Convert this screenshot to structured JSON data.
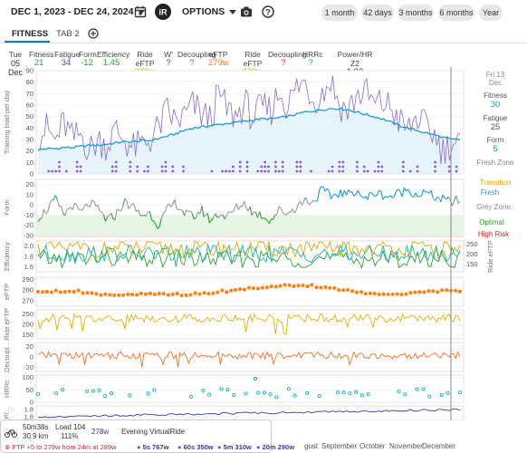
{
  "header": {
    "date_range": "DEC 1, 2023 - DEC 24, 2024",
    "options_label": "OPTIONS",
    "range_buttons": [
      "1 month",
      "42 days",
      "3 months",
      "6 months",
      "Year"
    ]
  },
  "tabs": [
    {
      "label": "FITNESS"
    },
    {
      "label": "TAB 2"
    }
  ],
  "summary": {
    "day": "Tue",
    "date": "05 Dec",
    "metrics": [
      {
        "label": "Fitness",
        "value": "21",
        "color": "#1a9bd7"
      },
      {
        "label": "Fatigue",
        "value": "34",
        "color": "#6b3fa0"
      },
      {
        "label": "Form",
        "value": "-12",
        "color": "#2aa12a"
      },
      {
        "label": "Efficiency",
        "value": "1.45",
        "color": "#2aa12a"
      },
      {
        "label": "Ride eFTP",
        "value": "279w",
        "color": "#e0a800"
      },
      {
        "label": "W'",
        "value": "?",
        "color": "#d62728"
      },
      {
        "label": "Decoupling",
        "value": "?",
        "color": "#1a9bd7"
      },
      {
        "label": "eFTP",
        "value": "279w",
        "color": "#ff7f0e"
      },
      {
        "label": "Ride eFTP",
        "value": "279w",
        "color": "#e0a800"
      },
      {
        "label": "Decoupling",
        "value": "?",
        "color": "#d62728"
      },
      {
        "label": "HRRc",
        "value": "?",
        "color": "#1a9bd7"
      },
      {
        "label": "Power/HR Z2",
        "value": "1.82",
        "color": "#3a3a9a"
      }
    ]
  },
  "sidebar": {
    "date_line1": "Fri 13",
    "date_line2": "Dec",
    "fitness_label": "Fitness",
    "fitness_value": "30",
    "fatigue_label": "Fatigue",
    "fatigue_value": "25",
    "form_label": "Form",
    "form_value": "5",
    "zone": "Fresh Zone"
  },
  "form_zones": [
    "Transition",
    "Fresh",
    "Grey Zone",
    "Optimal",
    "High Risk"
  ],
  "chart_data": [
    {
      "type": "line",
      "title": "",
      "ylabel": "Training load per day",
      "yticks": [
        0,
        10,
        20,
        30,
        40,
        50,
        60,
        70,
        80,
        90
      ],
      "ylim": [
        0,
        90
      ],
      "series": [
        {
          "name": "Fitness",
          "color": "#1a9bd7",
          "values": [
            21,
            22,
            22,
            23,
            23,
            24,
            25,
            25,
            26,
            27,
            28,
            28,
            29,
            29,
            31,
            33,
            35,
            38,
            40,
            41,
            42,
            43,
            44,
            45,
            46,
            47,
            48,
            48,
            49,
            50,
            52,
            54,
            55,
            56,
            57,
            57,
            56,
            54,
            52,
            50,
            48,
            45,
            42,
            40,
            38,
            36,
            34,
            32,
            30,
            30
          ]
        },
        {
          "name": "Fatigue",
          "color": "#7a52c7",
          "values": [
            34,
            40,
            28,
            45,
            30,
            35,
            20,
            30,
            25,
            38,
            30,
            22,
            25,
            30,
            40,
            55,
            45,
            50,
            60,
            52,
            48,
            70,
            55,
            50,
            62,
            48,
            58,
            55,
            72,
            60,
            75,
            80,
            65,
            70,
            82,
            60,
            55,
            68,
            72,
            60,
            62,
            58,
            45,
            38,
            50,
            40,
            35,
            20,
            28,
            25
          ]
        }
      ]
    },
    {
      "type": "line",
      "ylabel": "Form",
      "yticks": [
        20,
        10,
        0,
        -10,
        -20,
        -30
      ],
      "ylim": [
        -30,
        25
      ],
      "series": [
        {
          "name": "Form",
          "values": [
            -12,
            -5,
            5,
            -10,
            0,
            -8,
            2,
            -5,
            -15,
            -10,
            3,
            -2,
            -10,
            -8,
            -20,
            -5,
            2,
            -8,
            -12,
            -5,
            -15,
            -8,
            -12,
            -3,
            2,
            -8,
            -10,
            -15,
            -5,
            -8,
            -2,
            5,
            3,
            15,
            8,
            12,
            10,
            15,
            5,
            12,
            10,
            8,
            12,
            15,
            10,
            12,
            8,
            5,
            3,
            5
          ]
        }
      ]
    },
    {
      "type": "line",
      "ylabel": "Efficiency",
      "yticks": [
        2.0,
        1.8,
        1.6
      ],
      "right_ylabel": "Ride eFTP",
      "right_yticks": [
        250,
        200,
        150
      ]
    },
    {
      "type": "scatter",
      "ylabel": "eFTP",
      "yticks": [
        290,
        280,
        270
      ],
      "series": [
        {
          "name": "eFTP",
          "color": "#ff7f0e",
          "values": [
            279,
            279,
            279,
            279,
            279,
            278,
            277,
            276,
            276,
            276,
            276,
            276,
            276,
            276,
            276,
            276,
            276,
            276,
            277,
            277,
            278,
            279,
            280,
            281,
            282,
            282,
            283,
            283,
            284,
            284,
            284,
            284,
            283,
            282,
            281,
            280,
            279,
            278,
            277,
            276,
            276,
            277,
            277,
            278,
            278,
            279,
            279,
            279,
            279,
            279
          ]
        }
      ]
    },
    {
      "type": "line",
      "ylabel": "Ride eFTP",
      "yticks": [
        250,
        200,
        150
      ]
    },
    {
      "type": "line",
      "ylabel": "Decoupl...",
      "yticks": [
        20,
        0,
        -20
      ]
    },
    {
      "type": "scatter",
      "ylabel": "HRRc",
      "yticks": [
        100,
        50,
        0
      ]
    },
    {
      "type": "line",
      "ylabel": "P/...",
      "yticks": [
        1.8,
        1.6
      ]
    }
  ],
  "xaxis": {
    "months": [
      "gust",
      "September",
      "October",
      "November",
      "December"
    ]
  },
  "info_panel": {
    "duration": "50m38s",
    "distance": "30.9 km",
    "load_label": "Load 104",
    "intensity": "111%",
    "power": "278w",
    "activity": "Evening VirtualRide",
    "ftp_note": "FTP +5 to 279w from 24m at 289w",
    "bests": [
      "5s 767w",
      "60s 350w",
      "5m 310w",
      "20m 290w"
    ]
  }
}
